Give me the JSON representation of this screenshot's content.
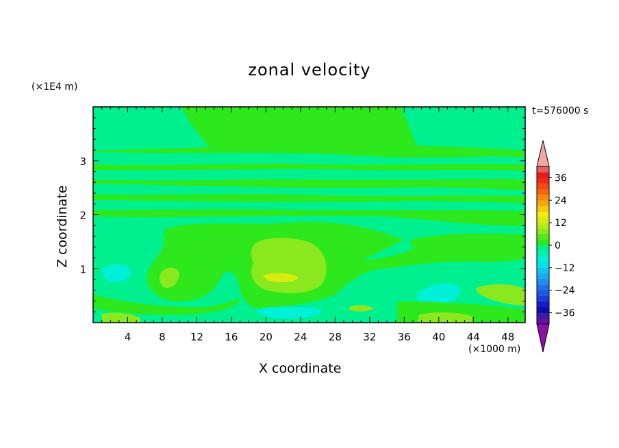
{
  "chart_data": {
    "type": "heatmap",
    "title": "zonal velocity",
    "xlabel": "X coordinate",
    "ylabel": "Z coordinate",
    "x_unit_label": "(×1000 m)",
    "y_unit_label": "(×1E4 m)",
    "time_label": "t=576000 s",
    "xlim": [
      0,
      50
    ],
    "ylim": [
      0,
      4
    ],
    "x_ticks": [
      4,
      8,
      12,
      16,
      20,
      24,
      28,
      32,
      36,
      40,
      44,
      48
    ],
    "y_ticks": [
      1,
      2,
      3
    ],
    "colorbar": {
      "ticks": [
        36,
        24,
        12,
        0,
        -12,
        -24,
        -36
      ],
      "tick_labels": [
        "36",
        "24",
        "12",
        "0",
        "−12",
        "−24",
        "−36"
      ],
      "levels": [
        -42,
        -39,
        -36,
        -33,
        -30,
        -27,
        -24,
        -21,
        -18,
        -15,
        -12,
        -9,
        -6,
        -3,
        0,
        3,
        6,
        9,
        12,
        15,
        18,
        21,
        24,
        27,
        30,
        33,
        36,
        39,
        42
      ],
      "colors": [
        "#6a0dad",
        "#3a1e9e",
        "#0b0bb0",
        "#1a1ac8",
        "#1e3ad6",
        "#1f5ae0",
        "#2070e8",
        "#1f8ef0",
        "#19abef",
        "#11c6ec",
        "#08e0e6",
        "#00f0d8",
        "#00f0b0",
        "#00f090",
        "#2ee81e",
        "#55e81e",
        "#8ae81e",
        "#b8ea14",
        "#d8ec10",
        "#f2ea10",
        "#f6c610",
        "#f6a610",
        "#f68a10",
        "#f46610",
        "#f24a12",
        "#ee2c16",
        "#e81a1a",
        "#e06060"
      ],
      "over_color": "#f4a6a6",
      "under_color": "#8a10a8"
    },
    "grid": false
  }
}
